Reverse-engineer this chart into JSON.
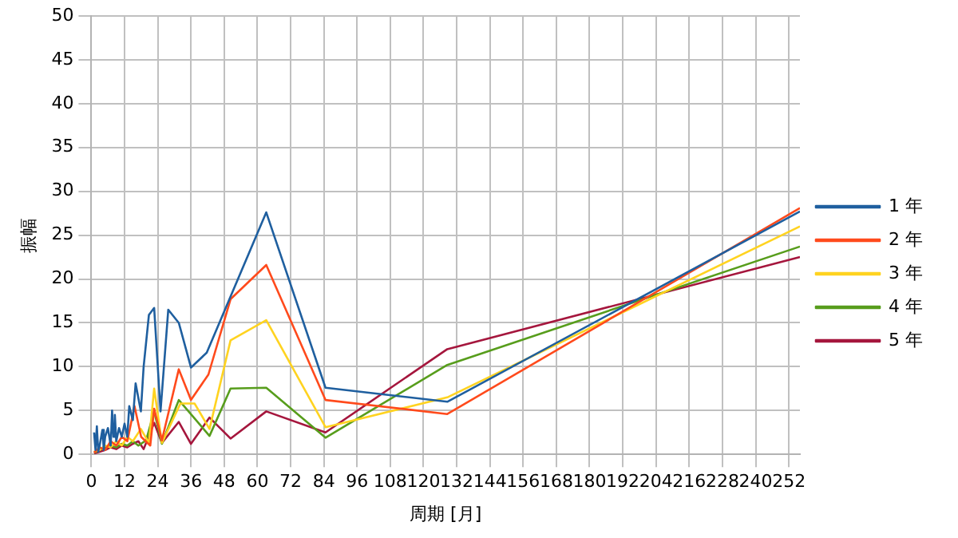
{
  "chart_data": {
    "type": "line",
    "xlabel": "周期 [月]",
    "ylabel": "振幅",
    "xlim": [
      0,
      256
    ],
    "xticks": [
      0,
      12,
      24,
      36,
      48,
      60,
      72,
      84,
      96,
      108,
      120,
      132,
      144,
      156,
      168,
      180,
      192,
      204,
      216,
      228,
      240,
      252
    ],
    "ylim": [
      0,
      50
    ],
    "yticks": [
      0,
      5,
      10,
      15,
      20,
      25,
      30,
      35,
      40,
      45,
      50
    ],
    "grid": true,
    "legend": "right",
    "marker": "none",
    "line_style": "solid",
    "series": [
      {
        "name": "1 年",
        "color": "#1f5f9f",
        "x": [
          1,
          1.5,
          2,
          2.5,
          3,
          4,
          4.5,
          5,
          6,
          7,
          7.5,
          8,
          8.5,
          9,
          10,
          11,
          12,
          13,
          13.7,
          15,
          16,
          17.9,
          18.9,
          20.8,
          22.7,
          25,
          27.8,
          31.6,
          36,
          41.7,
          63.2,
          84.6,
          128.6,
          256
        ],
        "values": [
          2.5,
          0.5,
          3.2,
          0.3,
          1,
          2.8,
          0.5,
          2,
          3,
          1,
          5,
          2,
          4.5,
          1.5,
          3,
          2,
          3.5,
          2,
          5.5,
          3.9,
          8.1,
          4.9,
          10,
          15.9,
          16.7,
          4.9,
          16.5,
          15,
          9.9,
          11.6,
          27.6,
          7.6,
          6,
          27.7
        ]
      },
      {
        "name": "2 年",
        "color": "#ff4a1c",
        "x": [
          1,
          3,
          5,
          7,
          9,
          11,
          13,
          15.6,
          18,
          21.3,
          22.7,
          25.5,
          31.6,
          36,
          42.3,
          50.3,
          63.2,
          84.6,
          128.6,
          256
        ],
        "values": [
          0.2,
          0.8,
          0.5,
          1.5,
          1,
          2,
          1.5,
          5.5,
          2,
          1,
          5.2,
          1.6,
          9.7,
          6.2,
          9.1,
          17.7,
          21.6,
          6.2,
          4.6,
          28.1
        ]
      },
      {
        "name": "3 年",
        "color": "#ffd320",
        "x": [
          1,
          3,
          5,
          7,
          9,
          11,
          13,
          15,
          17.9,
          20.8,
          22.7,
          25.5,
          32.2,
          37.3,
          42.7,
          50.3,
          63.2,
          84.6,
          128.6,
          256
        ],
        "values": [
          0.3,
          0.5,
          1,
          0.8,
          1.5,
          1,
          2,
          1.5,
          2.9,
          1.3,
          7.5,
          1.3,
          5.8,
          5.8,
          2.9,
          13,
          15.3,
          3.1,
          6.5,
          26
        ]
      },
      {
        "name": "4 年",
        "color": "#579d1c",
        "x": [
          1,
          3,
          5,
          7,
          9,
          11,
          13,
          15,
          17,
          19.8,
          22.7,
          25.5,
          31.6,
          42.7,
          50.3,
          63.2,
          84.6,
          128.6,
          256
        ],
        "values": [
          0.2,
          0.5,
          0.8,
          1,
          0.8,
          1.2,
          1,
          1.5,
          1,
          1.6,
          4.9,
          1.2,
          6.2,
          2.1,
          7.5,
          7.6,
          1.9,
          10.2,
          23.7
        ]
      },
      {
        "name": "5 年",
        "color": "#a5163d",
        "x": [
          1,
          3,
          5,
          7,
          9,
          11,
          13,
          15,
          17,
          18.9,
          22.7,
          25.5,
          31.6,
          36,
          42.7,
          50.3,
          63.2,
          84.6,
          128.6,
          256
        ],
        "values": [
          0.1,
          0.3,
          0.5,
          0.8,
          0.6,
          1,
          0.8,
          1.2,
          1.5,
          0.6,
          3.6,
          1.3,
          3.7,
          1.2,
          4.2,
          1.8,
          4.9,
          2.5,
          12,
          22.5
        ]
      }
    ]
  }
}
